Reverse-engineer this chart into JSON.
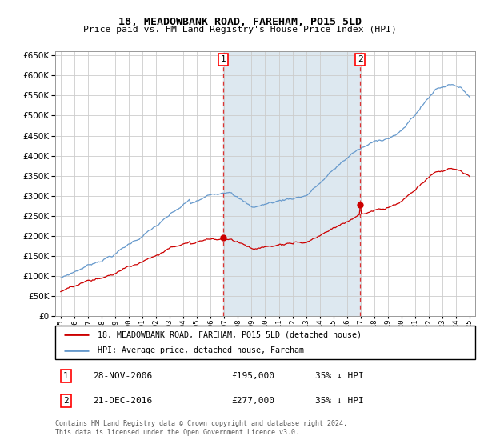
{
  "title": "18, MEADOWBANK ROAD, FAREHAM, PO15 5LD",
  "subtitle": "Price paid vs. HM Land Registry's House Price Index (HPI)",
  "legend_line1": "18, MEADOWBANK ROAD, FAREHAM, PO15 5LD (detached house)",
  "legend_line2": "HPI: Average price, detached house, Fareham",
  "footnote1": "Contains HM Land Registry data © Crown copyright and database right 2024.",
  "footnote2": "This data is licensed under the Open Government Licence v3.0.",
  "sale1_label": "1",
  "sale1_date": "28-NOV-2006",
  "sale1_price": "£195,000",
  "sale1_hpi": "35% ↓ HPI",
  "sale2_label": "2",
  "sale2_date": "21-DEC-2016",
  "sale2_price": "£277,000",
  "sale2_hpi": "35% ↓ HPI",
  "sale1_x": 2006.92,
  "sale2_x": 2016.97,
  "sale1_y": 195000,
  "sale2_y": 277000,
  "ylim": [
    0,
    660000
  ],
  "yticks": [
    0,
    50000,
    100000,
    150000,
    200000,
    250000,
    300000,
    350000,
    400000,
    450000,
    500000,
    550000,
    600000,
    650000
  ],
  "xlim_left": 1994.6,
  "xlim_right": 2025.4,
  "red_color": "#cc0000",
  "blue_color": "#6699cc",
  "dashed_color": "#dd3333",
  "span_color": "#dde8f0",
  "grid_color": "#cccccc"
}
